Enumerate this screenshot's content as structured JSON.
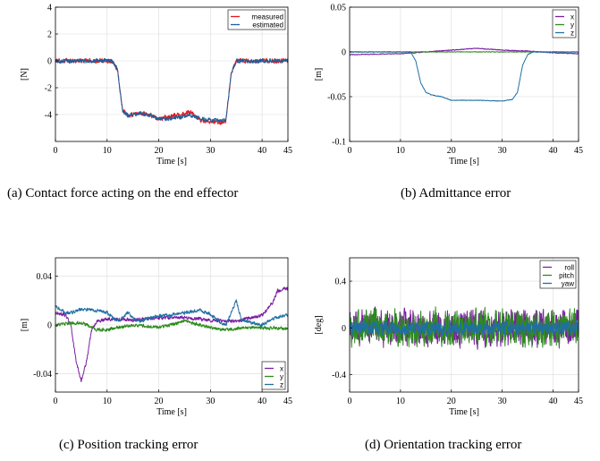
{
  "chart_data": [
    {
      "type": "line",
      "xlabel": "Time [s]",
      "ylabel": "[N]",
      "xlim": [
        0,
        45
      ],
      "ylim": [
        -6,
        4
      ],
      "xticks": [
        0,
        10,
        20,
        30,
        40,
        45
      ],
      "yticks": [
        4,
        2,
        0,
        -2,
        -4
      ],
      "grid": true,
      "legend": "top-right",
      "caption": "(a) Contact force acting on the end effector",
      "series": [
        {
          "name": "measured",
          "color": "#e41a1c",
          "noise": 0.15,
          "points": [
            [
              0,
              0
            ],
            [
              11,
              0
            ],
            [
              12,
              -0.6
            ],
            [
              13,
              -3.7
            ],
            [
              14,
              -4.1
            ],
            [
              16,
              -3.9
            ],
            [
              18,
              -4.0
            ],
            [
              20,
              -4.3
            ],
            [
              22,
              -4.2
            ],
            [
              24,
              -4.0
            ],
            [
              26,
              -3.8
            ],
            [
              28,
              -4.4
            ],
            [
              30,
              -4.5
            ],
            [
              32,
              -4.6
            ],
            [
              33,
              -4.5
            ],
            [
              34,
              -1.0
            ],
            [
              35,
              0
            ],
            [
              45,
              0
            ]
          ]
        },
        {
          "name": "estimated",
          "color": "#1f5f9b",
          "noise": 0.13,
          "points": [
            [
              0,
              0
            ],
            [
              11,
              0
            ],
            [
              12,
              -0.6
            ],
            [
              13,
              -3.7
            ],
            [
              14,
              -4.1
            ],
            [
              16,
              -3.9
            ],
            [
              18,
              -4.0
            ],
            [
              20,
              -4.3
            ],
            [
              22,
              -4.3
            ],
            [
              24,
              -4.2
            ],
            [
              26,
              -4.0
            ],
            [
              28,
              -4.3
            ],
            [
              30,
              -4.4
            ],
            [
              32,
              -4.5
            ],
            [
              33,
              -4.4
            ],
            [
              34,
              -1.0
            ],
            [
              35,
              0
            ],
            [
              45,
              0
            ]
          ]
        }
      ]
    },
    {
      "type": "line",
      "xlabel": "Time [s]",
      "ylabel": "[m]",
      "xlim": [
        0,
        45
      ],
      "ylim": [
        -0.1,
        0.05
      ],
      "xticks": [
        0,
        10,
        20,
        30,
        40,
        45
      ],
      "yticks": [
        0.05,
        0,
        -0.05,
        -0.1
      ],
      "yticklabels": [
        "0.05",
        "0",
        "-0.05",
        "-0.1"
      ],
      "grid": true,
      "legend": "top-right",
      "caption": "(b) Admittance error",
      "series": [
        {
          "name": "x",
          "color": "#7b1fa2",
          "noise": 0.0004,
          "points": [
            [
              0,
              -0.003
            ],
            [
              10,
              -0.002
            ],
            [
              15,
              0
            ],
            [
              20,
              0.002
            ],
            [
              25,
              0.004
            ],
            [
              30,
              0.002
            ],
            [
              35,
              0.001
            ],
            [
              40,
              -0.001
            ],
            [
              45,
              -0.002
            ]
          ]
        },
        {
          "name": "y",
          "color": "#2e8b1e",
          "noise": 0.0003,
          "points": [
            [
              0,
              0
            ],
            [
              45,
              0
            ]
          ]
        },
        {
          "name": "z",
          "color": "#1f6fa3",
          "noise": 0.0003,
          "points": [
            [
              0,
              0
            ],
            [
              12,
              0
            ],
            [
              13,
              -0.01
            ],
            [
              14,
              -0.035
            ],
            [
              15,
              -0.045
            ],
            [
              16,
              -0.048
            ],
            [
              18,
              -0.05
            ],
            [
              20,
              -0.054
            ],
            [
              25,
              -0.054
            ],
            [
              30,
              -0.055
            ],
            [
              32,
              -0.053
            ],
            [
              33,
              -0.045
            ],
            [
              34,
              -0.015
            ],
            [
              35,
              -0.003
            ],
            [
              36,
              0
            ],
            [
              45,
              0
            ]
          ]
        }
      ]
    },
    {
      "type": "line",
      "xlabel": "Time [s]",
      "ylabel": "[m]",
      "xlim": [
        0,
        45
      ],
      "ylim": [
        -0.055,
        0.055
      ],
      "xticks": [
        0,
        10,
        20,
        30,
        40,
        45
      ],
      "yticks": [
        0.04,
        0,
        -0.04
      ],
      "yticklabels": [
        "0.04",
        "0",
        "-0.04"
      ],
      "grid": true,
      "legend": "bottom-right",
      "caption": "(c) Position tracking error",
      "series": [
        {
          "name": "x",
          "color": "#7b1fa2",
          "noise": 0.0012,
          "points": [
            [
              0,
              0.01
            ],
            [
              2,
              0.008
            ],
            [
              3,
              0
            ],
            [
              4,
              -0.03
            ],
            [
              5,
              -0.046
            ],
            [
              6,
              -0.03
            ],
            [
              7,
              -0.005
            ],
            [
              8,
              0.003
            ],
            [
              10,
              0.005
            ],
            [
              15,
              0.004
            ],
            [
              20,
              0.006
            ],
            [
              25,
              0.006
            ],
            [
              30,
              0.004
            ],
            [
              35,
              0.003
            ],
            [
              40,
              0.008
            ],
            [
              42,
              0.018
            ],
            [
              43,
              0.028
            ],
            [
              45,
              0.03
            ]
          ]
        },
        {
          "name": "y",
          "color": "#2e8b1e",
          "noise": 0.0012,
          "points": [
            [
              0,
              0
            ],
            [
              5,
              0.002
            ],
            [
              8,
              -0.004
            ],
            [
              10,
              -0.004
            ],
            [
              15,
              0
            ],
            [
              20,
              -0.002
            ],
            [
              25,
              0.003
            ],
            [
              28,
              0
            ],
            [
              32,
              -0.004
            ],
            [
              38,
              -0.002
            ],
            [
              45,
              -0.003
            ]
          ]
        },
        {
          "name": "z",
          "color": "#1f6fa3",
          "noise": 0.0012,
          "points": [
            [
              0,
              0.015
            ],
            [
              2,
              0.01
            ],
            [
              3,
              0.01
            ],
            [
              5,
              0.013
            ],
            [
              8,
              0.012
            ],
            [
              10,
              0.01
            ],
            [
              12,
              0.003
            ],
            [
              14,
              0.01
            ],
            [
              16,
              0.003
            ],
            [
              18,
              0.005
            ],
            [
              20,
              0.008
            ],
            [
              22,
              0.008
            ],
            [
              25,
              0.01
            ],
            [
              28,
              0.012
            ],
            [
              30,
              0.009
            ],
            [
              32,
              0.002
            ],
            [
              33,
              0
            ],
            [
              34,
              0.01
            ],
            [
              35,
              0.02
            ],
            [
              36,
              0.004
            ],
            [
              38,
              0.002
            ],
            [
              40,
              0
            ],
            [
              42,
              0.005
            ],
            [
              45,
              0.008
            ]
          ]
        }
      ]
    },
    {
      "type": "line",
      "xlabel": "Time [s]",
      "ylabel": "[deg]",
      "xlim": [
        0,
        45
      ],
      "ylim": [
        -0.55,
        0.6
      ],
      "xticks": [
        0,
        10,
        20,
        30,
        40,
        45
      ],
      "yticks": [
        0.4,
        0,
        -0.4
      ],
      "grid": true,
      "legend": "top-right",
      "caption": "(d) Orientation tracking error",
      "series": [
        {
          "name": "roll",
          "color": "#7b1fa2",
          "noise": 0.13,
          "points": [
            [
              0,
              0
            ],
            [
              45,
              0
            ]
          ]
        },
        {
          "name": "pitch",
          "color": "#2e8b1e",
          "noise": 0.13,
          "points": [
            [
              0,
              0
            ],
            [
              45,
              0
            ]
          ]
        },
        {
          "name": "yaw",
          "color": "#1f6fa3",
          "noise": 0.05,
          "points": [
            [
              0,
              0
            ],
            [
              45,
              0
            ]
          ]
        }
      ]
    }
  ]
}
